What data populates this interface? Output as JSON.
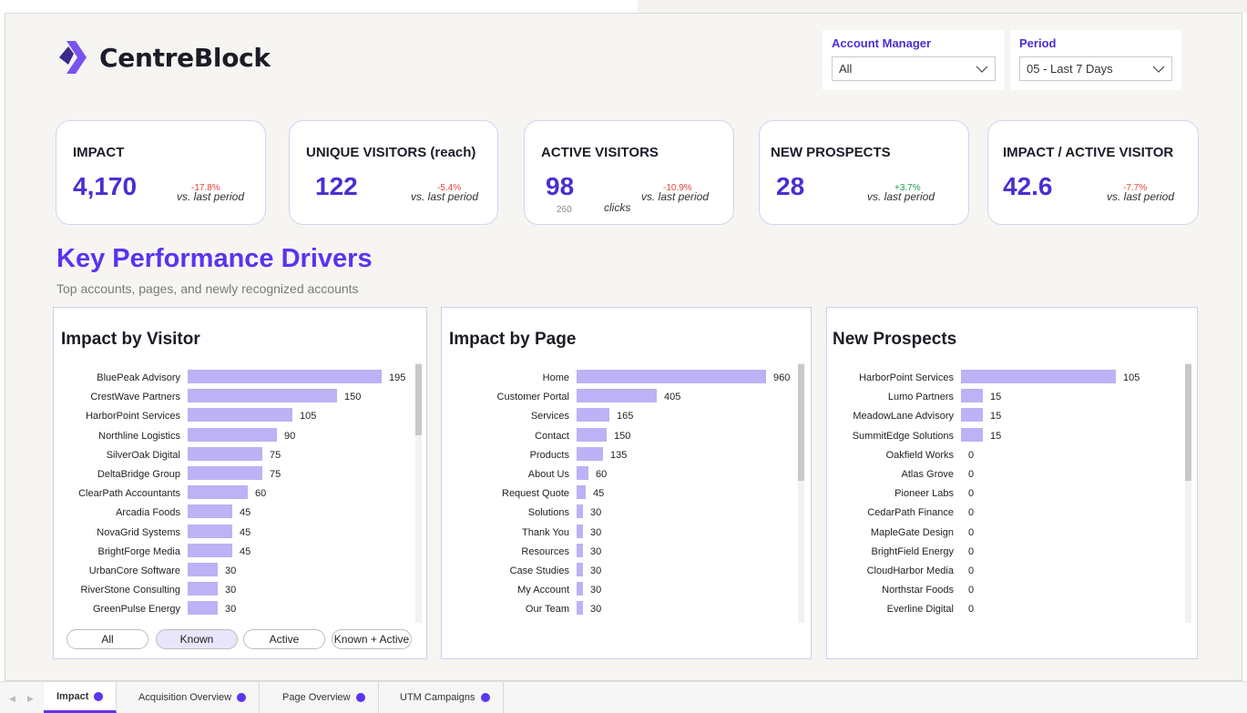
{
  "brand": {
    "name": "CentreBlock",
    "accent": "#5b33f0"
  },
  "filters": {
    "account_manager": {
      "label": "Account Manager",
      "value": "All"
    },
    "period": {
      "label": "Period",
      "value": "05 - Last 7 Days"
    }
  },
  "kpis": [
    {
      "title": "IMPACT",
      "value": "4,170",
      "delta": "-17.8%",
      "vs": "vs. last period",
      "trend": "neg"
    },
    {
      "title": "UNIQUE VISITORS (reach)",
      "value": "122",
      "delta": "-5.4%",
      "vs": "vs. last period",
      "trend": "neg"
    },
    {
      "title": "ACTIVE VISITORS",
      "value": "98",
      "delta": "-10.9%",
      "vs": "vs. last period",
      "trend": "neg",
      "secondary_value": "260",
      "secondary_label": "clicks"
    },
    {
      "title": "NEW PROSPECTS",
      "value": "28",
      "delta": "+3.7%",
      "vs": "vs. last period",
      "trend": "pos"
    },
    {
      "title": "IMPACT / ACTIVE VISITOR",
      "value": "42.6",
      "delta": "-7.7%",
      "vs": "vs. last period",
      "trend": "neg"
    }
  ],
  "section": {
    "title": "Key Performance Drivers",
    "subtitle": "Top accounts, pages, and newly recognized accounts"
  },
  "panels": {
    "visitor": {
      "title": "Impact by Visitor",
      "rows": [
        {
          "label": "BluePeak Advisory",
          "value": 195
        },
        {
          "label": "CrestWave Partners",
          "value": 150
        },
        {
          "label": "HarborPoint Services",
          "value": 105
        },
        {
          "label": "Northline Logistics",
          "value": 90
        },
        {
          "label": "SilverOak Digital",
          "value": 75
        },
        {
          "label": "DeltaBridge Group",
          "value": 75
        },
        {
          "label": "ClearPath Accountants",
          "value": 60
        },
        {
          "label": "Arcadia Foods",
          "value": 45
        },
        {
          "label": "NovaGrid Systems",
          "value": 45
        },
        {
          "label": "BrightForge Media",
          "value": 45
        },
        {
          "label": "UrbanCore Software",
          "value": 30
        },
        {
          "label": "RiverStone Consulting",
          "value": 30
        },
        {
          "label": "GreenPulse Energy",
          "value": 30
        }
      ],
      "toggles": [
        "All",
        "Known",
        "Active",
        "Known + Active"
      ],
      "selected_toggle": "Known"
    },
    "page": {
      "title": "Impact by Page",
      "rows": [
        {
          "label": "Home",
          "value": 960
        },
        {
          "label": "Customer Portal",
          "value": 405
        },
        {
          "label": "Services",
          "value": 165
        },
        {
          "label": "Contact",
          "value": 150
        },
        {
          "label": "Products",
          "value": 135
        },
        {
          "label": "About Us",
          "value": 60
        },
        {
          "label": "Request Quote",
          "value": 45
        },
        {
          "label": "Solutions",
          "value": 30
        },
        {
          "label": "Thank You",
          "value": 30
        },
        {
          "label": "Resources",
          "value": 30
        },
        {
          "label": "Case Studies",
          "value": 30
        },
        {
          "label": "My Account",
          "value": 30
        },
        {
          "label": "Our Team",
          "value": 30
        }
      ]
    },
    "prospects": {
      "title": "New Prospects",
      "rows": [
        {
          "label": "HarborPoint Services",
          "value": 105
        },
        {
          "label": "Lumo Partners",
          "value": 15
        },
        {
          "label": "MeadowLane Advisory",
          "value": 15
        },
        {
          "label": "SummitEdge Solutions",
          "value": 15
        },
        {
          "label": "Oakfield Works",
          "value": 0
        },
        {
          "label": "Atlas Grove",
          "value": 0
        },
        {
          "label": "Pioneer Labs",
          "value": 0
        },
        {
          "label": "CedarPath Finance",
          "value": 0
        },
        {
          "label": "MapleGate Design",
          "value": 0
        },
        {
          "label": "BrightField Energy",
          "value": 0
        },
        {
          "label": "CloudHarbor Media",
          "value": 0
        },
        {
          "label": "Northstar Foods",
          "value": 0
        },
        {
          "label": "Everline Digital",
          "value": 0
        }
      ]
    }
  },
  "tabs": [
    {
      "label": "Impact",
      "active": true
    },
    {
      "label": "Acquisition Overview",
      "active": false
    },
    {
      "label": "Page Overview",
      "active": false
    },
    {
      "label": "UTM Campaigns",
      "active": false
    }
  ],
  "icons": {
    "tab_prev": "chevron-left-icon",
    "tab_next": "chevron-right-icon",
    "dropdown": "chevron-down-icon"
  }
}
